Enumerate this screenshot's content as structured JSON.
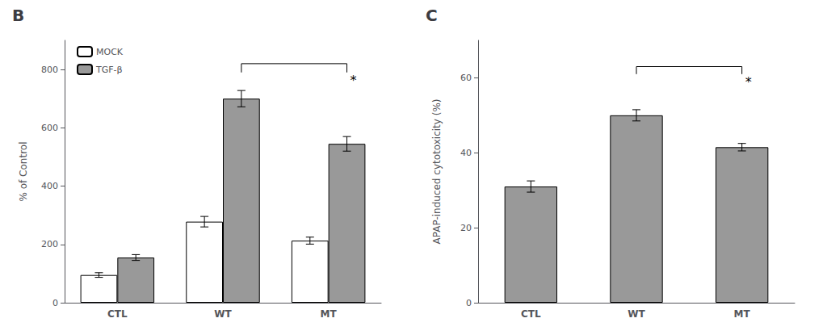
{
  "chart_data": [
    {
      "type": "bar",
      "title": "B",
      "categories": [
        "CTL",
        "WT",
        "MT"
      ],
      "series": [
        {
          "name": "MOCK",
          "color": "#ffffff",
          "values": [
            95,
            278,
            213
          ],
          "errors": [
            8,
            18,
            12
          ]
        },
        {
          "name": "TGF-β",
          "color": "#999999",
          "values": [
            155,
            700,
            545
          ],
          "errors": [
            10,
            28,
            25
          ]
        }
      ],
      "ylabel": "% of Control",
      "ylim": [
        0,
        900
      ],
      "yticks": [
        0,
        200,
        400,
        600,
        800
      ],
      "grid": false,
      "legend": "upper left",
      "annotations": [
        {
          "text": "*",
          "from": "WT",
          "to": "MT",
          "series": "TGF-β",
          "y": 820,
          "drop": 30
        }
      ]
    },
    {
      "type": "bar",
      "title": "C",
      "categories": [
        "CTL",
        "WT",
        "MT"
      ],
      "values": [
        31,
        50,
        41.5
      ],
      "errors": [
        1.5,
        1.5,
        1.0
      ],
      "color": "#999999",
      "ylabel": "APAP-induced cytotoxicity (%)",
      "ylim": [
        0,
        70
      ],
      "yticks": [
        0,
        20,
        40,
        60
      ],
      "grid": false,
      "annotations": [
        {
          "text": "*",
          "from": "WT",
          "to": "MT",
          "y": 63,
          "drop": 2
        }
      ]
    }
  ]
}
